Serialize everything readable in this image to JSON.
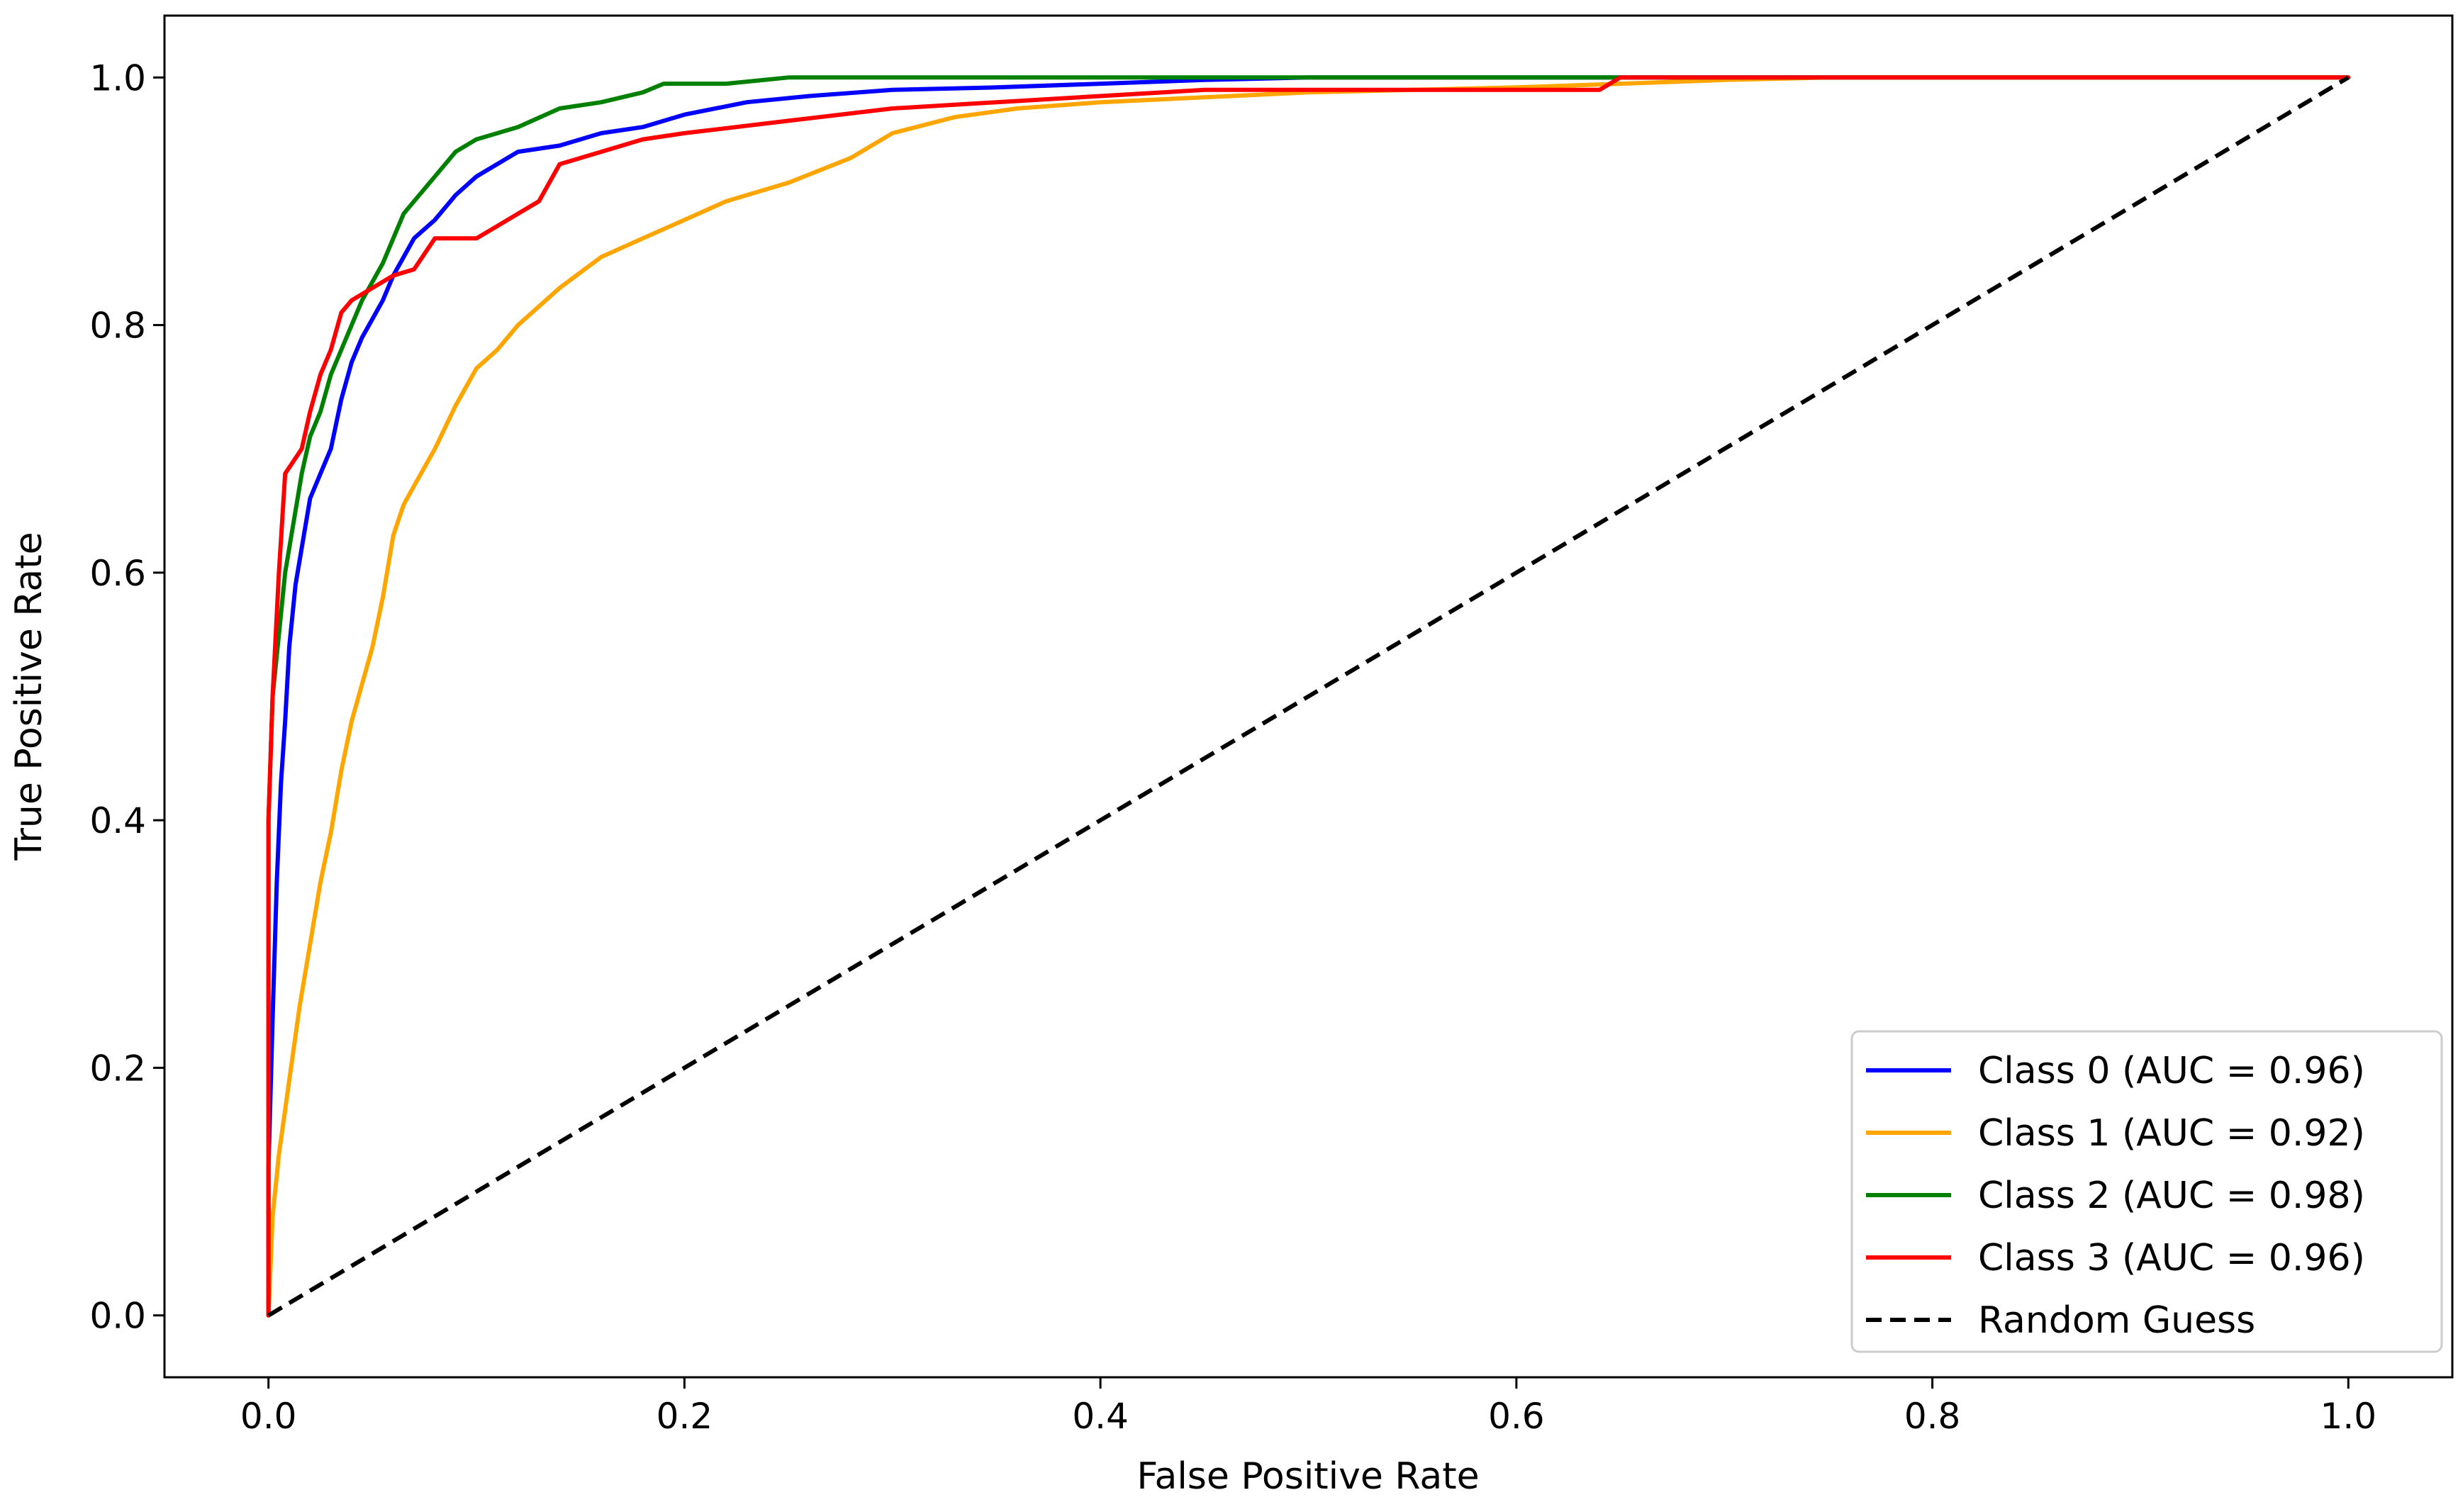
{
  "chart_data": {
    "type": "line",
    "title": "",
    "xlabel": "False Positive Rate",
    "ylabel": "True Positive Rate",
    "xlim": [
      -0.05,
      1.05
    ],
    "ylim": [
      -0.05,
      1.05
    ],
    "xticks": [
      0.0,
      0.2,
      0.4,
      0.6,
      0.8,
      1.0
    ],
    "yticks": [
      0.0,
      0.2,
      0.4,
      0.6,
      0.8,
      1.0
    ],
    "xtick_labels": [
      "0.0",
      "0.2",
      "0.4",
      "0.6",
      "0.8",
      "1.0"
    ],
    "ytick_labels": [
      "0.0",
      "0.2",
      "0.4",
      "0.6",
      "0.8",
      "1.0"
    ],
    "grid": false,
    "legend_position": "bottom-right",
    "series": [
      {
        "name": "Class 0 (AUC = 0.96)",
        "color": "#0000ff",
        "style": "solid",
        "x": [
          0,
          0,
          0.002,
          0.004,
          0.006,
          0.008,
          0.01,
          0.013,
          0.016,
          0.02,
          0.025,
          0.03,
          0.035,
          0.04,
          0.045,
          0.05,
          0.055,
          0.06,
          0.065,
          0.07,
          0.08,
          0.09,
          0.1,
          0.12,
          0.14,
          0.16,
          0.18,
          0.2,
          0.23,
          0.26,
          0.3,
          0.35,
          0.4,
          0.45,
          0.5,
          0.55,
          1.0
        ],
        "y": [
          0,
          0.12,
          0.24,
          0.35,
          0.43,
          0.48,
          0.54,
          0.59,
          0.62,
          0.66,
          0.68,
          0.7,
          0.74,
          0.77,
          0.79,
          0.805,
          0.82,
          0.84,
          0.855,
          0.87,
          0.885,
          0.905,
          0.92,
          0.94,
          0.945,
          0.955,
          0.96,
          0.97,
          0.98,
          0.985,
          0.99,
          0.992,
          0.995,
          0.998,
          1.0,
          1.0,
          1.0
        ]
      },
      {
        "name": "Class 1 (AUC = 0.92)",
        "color": "#ffa500",
        "style": "solid",
        "x": [
          0,
          0.002,
          0.005,
          0.01,
          0.015,
          0.02,
          0.025,
          0.03,
          0.035,
          0.04,
          0.045,
          0.05,
          0.055,
          0.06,
          0.065,
          0.07,
          0.08,
          0.09,
          0.1,
          0.11,
          0.12,
          0.14,
          0.16,
          0.18,
          0.2,
          0.22,
          0.25,
          0.28,
          0.3,
          0.33,
          0.36,
          0.4,
          0.45,
          0.5,
          0.55,
          0.6,
          0.65,
          0.7,
          0.75,
          1.0
        ],
        "y": [
          0,
          0.08,
          0.13,
          0.19,
          0.25,
          0.3,
          0.35,
          0.39,
          0.44,
          0.48,
          0.51,
          0.54,
          0.58,
          0.63,
          0.655,
          0.67,
          0.7,
          0.735,
          0.765,
          0.78,
          0.8,
          0.83,
          0.855,
          0.87,
          0.885,
          0.9,
          0.915,
          0.935,
          0.955,
          0.968,
          0.975,
          0.98,
          0.984,
          0.988,
          0.99,
          0.992,
          0.995,
          0.998,
          1.0,
          1.0
        ]
      },
      {
        "name": "Class 2 (AUC = 0.98)",
        "color": "#008000",
        "style": "solid",
        "x": [
          0,
          0,
          0.002,
          0.005,
          0.008,
          0.012,
          0.016,
          0.02,
          0.025,
          0.03,
          0.035,
          0.04,
          0.045,
          0.05,
          0.055,
          0.06,
          0.065,
          0.07,
          0.08,
          0.09,
          0.1,
          0.12,
          0.14,
          0.16,
          0.18,
          0.19,
          0.2,
          0.22,
          0.25,
          0.3,
          0.4,
          0.5,
          0.6,
          1.0
        ],
        "y": [
          0,
          0.4,
          0.5,
          0.55,
          0.6,
          0.64,
          0.68,
          0.71,
          0.73,
          0.76,
          0.78,
          0.8,
          0.82,
          0.835,
          0.85,
          0.87,
          0.89,
          0.9,
          0.92,
          0.94,
          0.95,
          0.96,
          0.975,
          0.98,
          0.988,
          0.995,
          0.995,
          0.995,
          1.0,
          1.0,
          1.0,
          1.0,
          1.0,
          1.0
        ]
      },
      {
        "name": "Class 3 (AUC = 0.96)",
        "color": "#ff0000",
        "style": "solid",
        "x": [
          0,
          0,
          0.002,
          0.005,
          0.008,
          0.012,
          0.016,
          0.02,
          0.025,
          0.03,
          0.035,
          0.04,
          0.05,
          0.06,
          0.07,
          0.08,
          0.09,
          0.1,
          0.11,
          0.12,
          0.13,
          0.14,
          0.16,
          0.18,
          0.2,
          0.25,
          0.3,
          0.35,
          0.4,
          0.45,
          0.5,
          0.55,
          0.6,
          0.64,
          0.65,
          0.7,
          0.8,
          1.0
        ],
        "y": [
          0,
          0.4,
          0.5,
          0.6,
          0.68,
          0.69,
          0.7,
          0.73,
          0.76,
          0.78,
          0.81,
          0.82,
          0.83,
          0.84,
          0.845,
          0.87,
          0.87,
          0.87,
          0.88,
          0.89,
          0.9,
          0.93,
          0.94,
          0.95,
          0.955,
          0.965,
          0.975,
          0.98,
          0.985,
          0.99,
          0.99,
          0.99,
          0.99,
          0.99,
          1.0,
          1.0,
          1.0,
          1.0
        ]
      },
      {
        "name": "Random Guess",
        "color": "#000000",
        "style": "dashed",
        "x": [
          0,
          1
        ],
        "y": [
          0,
          1
        ]
      }
    ]
  }
}
